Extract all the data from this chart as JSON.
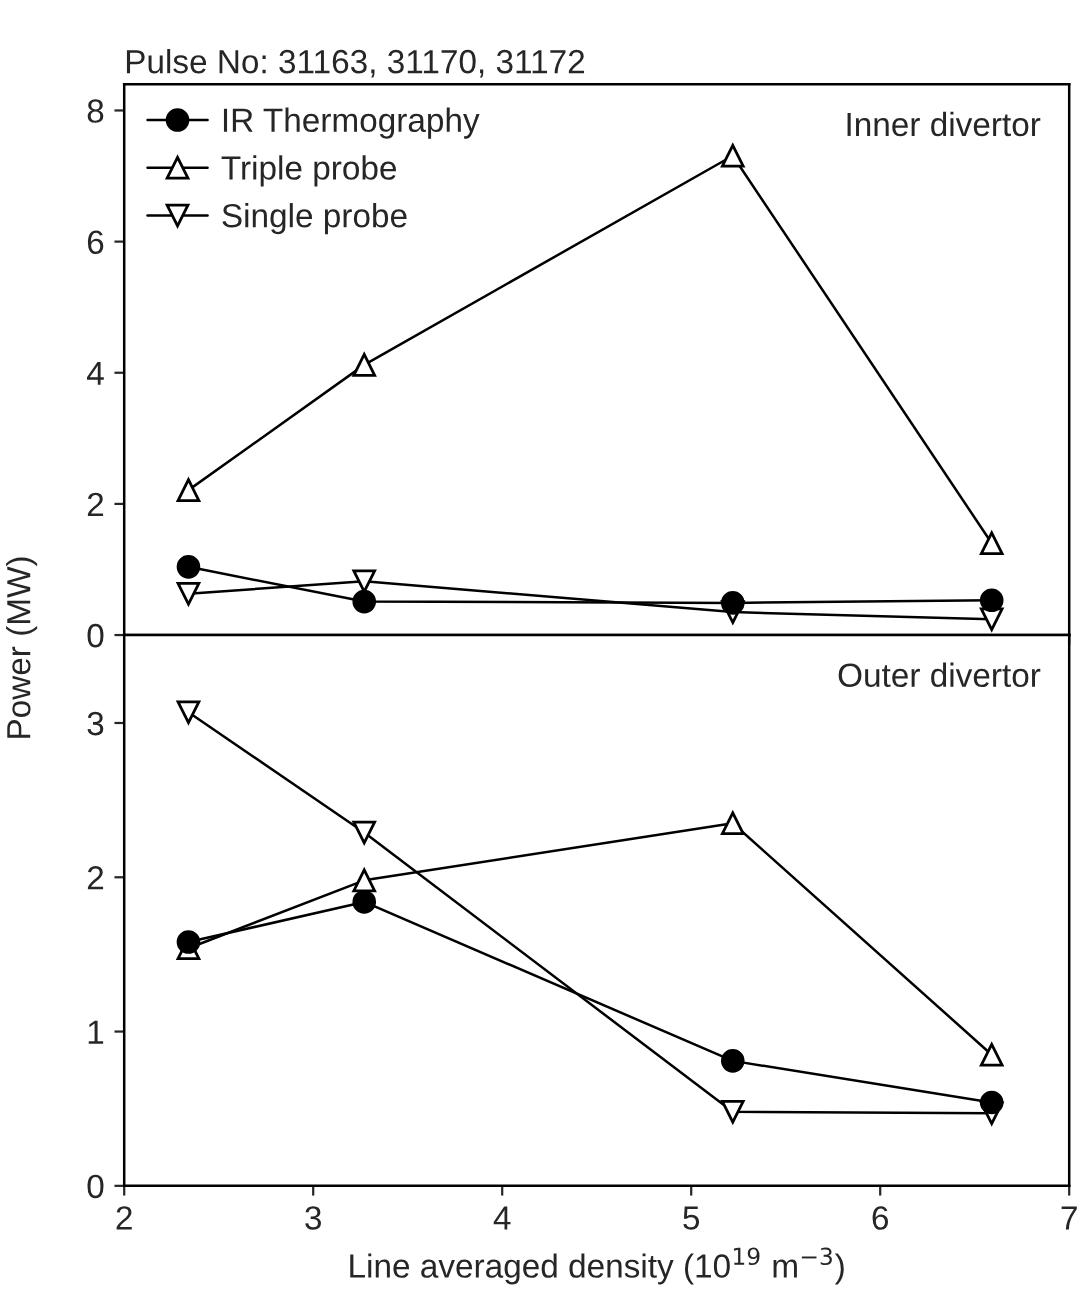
{
  "chart_data": [
    {
      "type": "line",
      "title": "Pulse No: 31163, 31170, 31172",
      "ylabel": "Power (MW)",
      "annotations": [
        "Inner divertor"
      ],
      "x": [
        2.34,
        3.27,
        5.22,
        6.59
      ],
      "series": [
        {
          "name": "IR Thermography",
          "color": "#000000",
          "marker": "circle",
          "values": [
            1.04,
            0.51,
            0.49,
            0.53
          ]
        },
        {
          "name": "Triple probe",
          "color": "#000000",
          "marker": "triangle",
          "values": [
            2.21,
            4.12,
            7.31,
            1.4
          ]
        },
        {
          "name": "Single probe",
          "color": "#000000",
          "marker": "triangle_down",
          "values": [
            0.63,
            0.82,
            0.35,
            0.24
          ]
        }
      ],
      "xlim": [
        2,
        7
      ],
      "xticks": [
        2,
        3,
        4,
        5,
        6,
        7
      ],
      "ylim": [
        0,
        8.4
      ],
      "yticks": [
        0,
        2,
        4,
        6,
        8
      ],
      "tick_labels": "y",
      "legend": "top left",
      "grid": false,
      "line_style": "solid"
    },
    {
      "type": "line",
      "xlabel": "Line averaged density (10$^{19}$ m$^{−3}$)",
      "annotations": [
        "Outer divertor"
      ],
      "x": [
        2.34,
        3.27,
        5.22,
        6.59
      ],
      "series": [
        {
          "color": "#000000",
          "marker": "circle",
          "values": [
            1.58,
            1.84,
            0.81,
            0.54
          ]
        },
        {
          "color": "#000000",
          "marker": "triangle",
          "values": [
            1.54,
            1.98,
            2.35,
            0.85
          ]
        },
        {
          "color": "#000000",
          "marker": "triangle_down",
          "values": [
            3.07,
            2.29,
            0.48,
            0.47
          ]
        }
      ],
      "xlim": [
        2,
        7
      ],
      "xticks": [
        2,
        3,
        4,
        5,
        6,
        7
      ],
      "ylim": [
        0,
        3.57
      ],
      "yticks": [
        0,
        1,
        2,
        3
      ],
      "legend": false,
      "grid": false,
      "line_style": "solid"
    }
  ]
}
